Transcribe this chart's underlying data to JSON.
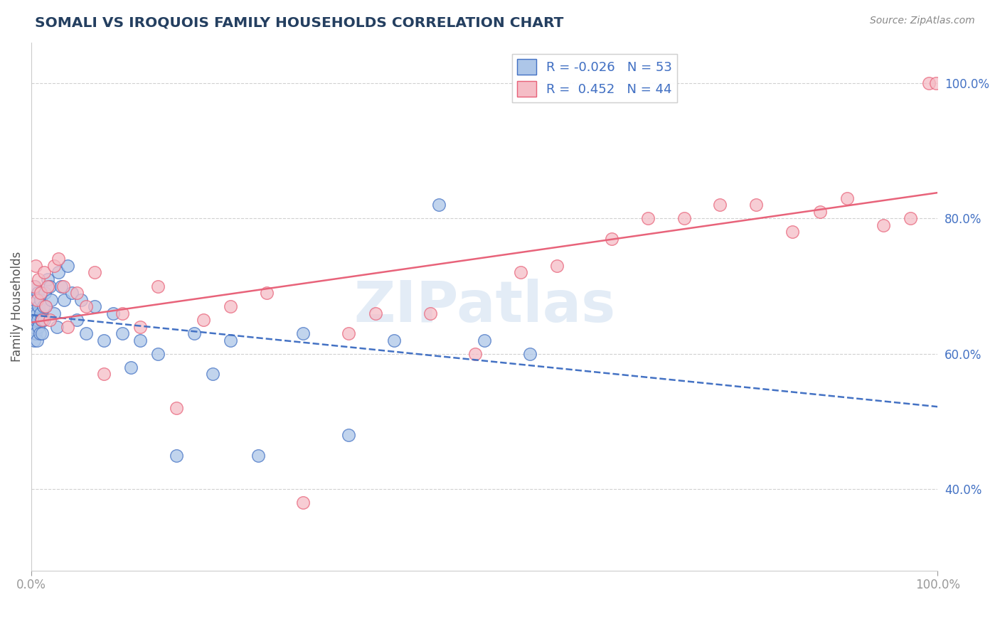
{
  "title": "SOMALI VS IROQUOIS FAMILY HOUSEHOLDS CORRELATION CHART",
  "source": "Source: ZipAtlas.com",
  "ylabel": "Family Households",
  "xlim": [
    0.0,
    1.0
  ],
  "ylim": [
    0.28,
    1.06
  ],
  "xtick_positions": [
    0.0,
    1.0
  ],
  "xtick_labels": [
    "0.0%",
    "100.0%"
  ],
  "ytick_positions_right": [
    0.4,
    0.6,
    0.8,
    1.0
  ],
  "ytick_labels_right": [
    "40.0%",
    "60.0%",
    "80.0%",
    "100.0%"
  ],
  "somali_color": "#adc6e8",
  "iroquois_color": "#f5bdc6",
  "somali_line_color": "#4472c4",
  "iroquois_line_color": "#e8637a",
  "watermark": "ZIPatlas",
  "title_color": "#243f60",
  "axis_color": "#999999",
  "grid_color": "#d0d0d0",
  "somali_x": [
    0.002,
    0.003,
    0.003,
    0.004,
    0.004,
    0.005,
    0.005,
    0.006,
    0.006,
    0.007,
    0.007,
    0.008,
    0.008,
    0.009,
    0.01,
    0.01,
    0.011,
    0.012,
    0.013,
    0.014,
    0.015,
    0.016,
    0.018,
    0.02,
    0.022,
    0.025,
    0.028,
    0.03,
    0.033,
    0.036,
    0.04,
    0.045,
    0.05,
    0.055,
    0.06,
    0.07,
    0.08,
    0.09,
    0.1,
    0.11,
    0.12,
    0.14,
    0.16,
    0.18,
    0.2,
    0.22,
    0.25,
    0.3,
    0.35,
    0.4,
    0.45,
    0.5,
    0.55
  ],
  "somali_y": [
    0.64,
    0.66,
    0.62,
    0.7,
    0.68,
    0.65,
    0.63,
    0.66,
    0.62,
    0.65,
    0.69,
    0.64,
    0.67,
    0.63,
    0.66,
    0.68,
    0.65,
    0.63,
    0.67,
    0.65,
    0.69,
    0.67,
    0.71,
    0.7,
    0.68,
    0.66,
    0.64,
    0.72,
    0.7,
    0.68,
    0.73,
    0.69,
    0.65,
    0.68,
    0.63,
    0.67,
    0.62,
    0.66,
    0.63,
    0.58,
    0.62,
    0.6,
    0.45,
    0.63,
    0.57,
    0.62,
    0.45,
    0.63,
    0.48,
    0.62,
    0.82,
    0.62,
    0.6
  ],
  "iroquois_x": [
    0.003,
    0.005,
    0.006,
    0.008,
    0.01,
    0.012,
    0.014,
    0.016,
    0.018,
    0.02,
    0.025,
    0.03,
    0.035,
    0.04,
    0.05,
    0.06,
    0.07,
    0.08,
    0.1,
    0.12,
    0.14,
    0.16,
    0.19,
    0.22,
    0.26,
    0.3,
    0.35,
    0.38,
    0.44,
    0.49,
    0.54,
    0.58,
    0.64,
    0.68,
    0.72,
    0.76,
    0.8,
    0.84,
    0.87,
    0.9,
    0.94,
    0.97,
    0.99,
    0.998
  ],
  "iroquois_y": [
    0.7,
    0.73,
    0.68,
    0.71,
    0.69,
    0.65,
    0.72,
    0.67,
    0.7,
    0.65,
    0.73,
    0.74,
    0.7,
    0.64,
    0.69,
    0.67,
    0.72,
    0.57,
    0.66,
    0.64,
    0.7,
    0.52,
    0.65,
    0.67,
    0.69,
    0.38,
    0.63,
    0.66,
    0.66,
    0.6,
    0.72,
    0.73,
    0.77,
    0.8,
    0.8,
    0.82,
    0.82,
    0.78,
    0.81,
    0.83,
    0.79,
    0.8,
    1.0,
    1.0
  ],
  "somali_R": -0.026,
  "somali_N": 53,
  "iroquois_R": 0.452,
  "iroquois_N": 44
}
